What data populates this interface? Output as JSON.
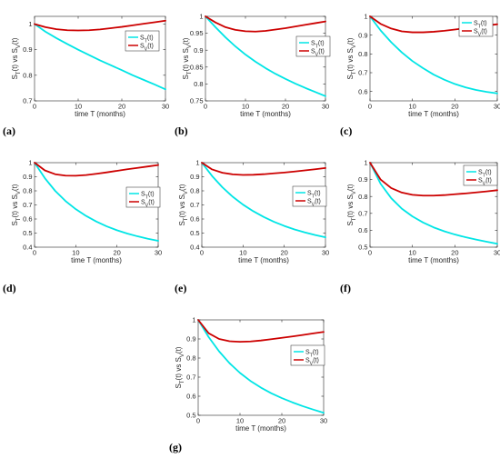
{
  "colors": {
    "S_T": "#00e5e5",
    "S_V": "#cc0000"
  },
  "chart_data": [
    {
      "type": "line",
      "panel_label": "(a)",
      "xlabel": "time T (months)",
      "ylabel": "S_T(t) vs S_V(t)",
      "xlim": [
        0,
        30
      ],
      "ylim": [
        0.7,
        1.03
      ],
      "xticks": [
        "0",
        "10",
        "20",
        "30"
      ],
      "yticks": [
        "0.7",
        "0.8",
        "0.9",
        "1"
      ],
      "legend_position": "top-right",
      "x": [
        0,
        2.5,
        5,
        7.5,
        10,
        12.5,
        15,
        17.5,
        20,
        22.5,
        25,
        27.5,
        30
      ],
      "series": [
        {
          "name": "S_T(t)",
          "values": [
            1,
            0.97,
            0.945,
            0.922,
            0.9,
            0.879,
            0.858,
            0.839,
            0.82,
            0.8,
            0.782,
            0.764,
            0.745
          ]
        },
        {
          "name": "S_V(t)",
          "values": [
            1,
            0.988,
            0.98,
            0.976,
            0.975,
            0.976,
            0.979,
            0.984,
            0.989,
            0.995,
            1.001,
            1.007,
            1.013
          ]
        }
      ]
    },
    {
      "type": "line",
      "panel_label": "(b)",
      "xlabel": "time T (months)",
      "ylabel": "S_T(t) vs S_V(t)",
      "xlim": [
        0,
        30
      ],
      "ylim": [
        0.75,
        1.0
      ],
      "xticks": [
        "0",
        "10",
        "20",
        "30"
      ],
      "yticks": [
        "0.75",
        "0.8",
        "0.85",
        "0.9",
        "0.95",
        "1"
      ],
      "legend_position": "right",
      "x": [
        0,
        2.5,
        5,
        7.5,
        10,
        12.5,
        15,
        17.5,
        20,
        22.5,
        25,
        27.5,
        30
      ],
      "series": [
        {
          "name": "S_T(t)",
          "values": [
            1,
            0.968,
            0.938,
            0.911,
            0.887,
            0.866,
            0.847,
            0.83,
            0.815,
            0.801,
            0.788,
            0.776,
            0.764
          ]
        },
        {
          "name": "S_V(t)",
          "values": [
            1,
            0.982,
            0.968,
            0.96,
            0.956,
            0.955,
            0.957,
            0.961,
            0.965,
            0.97,
            0.975,
            0.98,
            0.985
          ]
        }
      ]
    },
    {
      "type": "line",
      "panel_label": "(c)",
      "xlabel": "time T (months)",
      "ylabel": "S_T(t) vs S_V(t)",
      "xlim": [
        0,
        30
      ],
      "ylim": [
        0.55,
        1.0
      ],
      "xticks": [
        "0",
        "10",
        "20",
        "30"
      ],
      "yticks": [
        "0.6",
        "0.7",
        "0.8",
        "0.9",
        "1"
      ],
      "legend_position": "top-right",
      "x": [
        0,
        2.5,
        5,
        7.5,
        10,
        12.5,
        15,
        17.5,
        20,
        22.5,
        25,
        27.5,
        30
      ],
      "series": [
        {
          "name": "S_T(t)",
          "values": [
            1,
            0.925,
            0.862,
            0.808,
            0.762,
            0.724,
            0.69,
            0.663,
            0.64,
            0.622,
            0.608,
            0.598,
            0.59
          ]
        },
        {
          "name": "S_V(t)",
          "values": [
            1,
            0.96,
            0.935,
            0.92,
            0.915,
            0.915,
            0.918,
            0.923,
            0.93,
            0.937,
            0.944,
            0.951,
            0.958
          ]
        }
      ]
    },
    {
      "type": "line",
      "panel_label": "(d)",
      "xlabel": "time T (months)",
      "ylabel": "S_T(t) vs S_V(t)",
      "xlim": [
        0,
        30
      ],
      "ylim": [
        0.4,
        1.0
      ],
      "xticks": [
        "0",
        "10",
        "20",
        "30"
      ],
      "yticks": [
        "0.4",
        "0.5",
        "0.6",
        "0.7",
        "0.8",
        "0.9",
        "1"
      ],
      "legend_position": "right",
      "x": [
        0,
        2.5,
        5,
        7.5,
        10,
        12.5,
        15,
        17.5,
        20,
        22.5,
        25,
        27.5,
        30
      ],
      "series": [
        {
          "name": "S_T(t)",
          "values": [
            1,
            0.89,
            0.8,
            0.728,
            0.67,
            0.622,
            0.582,
            0.548,
            0.52,
            0.497,
            0.477,
            0.46,
            0.445
          ]
        },
        {
          "name": "S_V(t)",
          "values": [
            1,
            0.945,
            0.918,
            0.908,
            0.907,
            0.912,
            0.921,
            0.931,
            0.942,
            0.953,
            0.963,
            0.973,
            0.983
          ]
        }
      ]
    },
    {
      "type": "line",
      "panel_label": "(e)",
      "xlabel": "time T (months)",
      "ylabel": "S_T(t) vs S_V(t)",
      "xlim": [
        0,
        30
      ],
      "ylim": [
        0.4,
        1.0
      ],
      "xticks": [
        "0",
        "10",
        "20",
        "30"
      ],
      "yticks": [
        "0.4",
        "0.5",
        "0.6",
        "0.7",
        "0.8",
        "0.9",
        "1"
      ],
      "legend_position": "right",
      "x": [
        0,
        2.5,
        5,
        7.5,
        10,
        12.5,
        15,
        17.5,
        20,
        22.5,
        25,
        27.5,
        30
      ],
      "series": [
        {
          "name": "S_T(t)",
          "values": [
            1,
            0.905,
            0.825,
            0.758,
            0.702,
            0.655,
            0.615,
            0.58,
            0.551,
            0.526,
            0.505,
            0.486,
            0.47
          ]
        },
        {
          "name": "S_V(t)",
          "values": [
            1,
            0.952,
            0.928,
            0.917,
            0.913,
            0.914,
            0.918,
            0.924,
            0.93,
            0.937,
            0.945,
            0.953,
            0.962
          ]
        }
      ]
    },
    {
      "type": "line",
      "panel_label": "(f)",
      "xlabel": "time T (months)",
      "ylabel": "S_T(t) vs S_V(t)",
      "xlim": [
        0,
        30
      ],
      "ylim": [
        0.5,
        1.0
      ],
      "xticks": [
        "0",
        "10",
        "20",
        "30"
      ],
      "yticks": [
        "0.5",
        "0.6",
        "0.7",
        "0.8",
        "0.9",
        "1"
      ],
      "legend_position": "top-right",
      "x": [
        0,
        2.5,
        5,
        7.5,
        10,
        12.5,
        15,
        17.5,
        20,
        22.5,
        25,
        27.5,
        30
      ],
      "series": [
        {
          "name": "S_T(t)",
          "values": [
            1,
            0.875,
            0.79,
            0.728,
            0.682,
            0.646,
            0.617,
            0.594,
            0.575,
            0.559,
            0.545,
            0.532,
            0.52
          ]
        },
        {
          "name": "S_V(t)",
          "values": [
            1,
            0.9,
            0.85,
            0.823,
            0.81,
            0.805,
            0.805,
            0.808,
            0.813,
            0.818,
            0.824,
            0.83,
            0.837
          ]
        }
      ]
    },
    {
      "type": "line",
      "panel_label": "(g)",
      "xlabel": "time T (months)",
      "ylabel": "S_T(t) vs S_V(t)",
      "xlim": [
        0,
        30
      ],
      "ylim": [
        0.5,
        1.0
      ],
      "xticks": [
        "0",
        "10",
        "20",
        "30"
      ],
      "yticks": [
        "0.5",
        "0.6",
        "0.7",
        "0.8",
        "0.9",
        "1"
      ],
      "legend_position": "right",
      "x": [
        0,
        2.5,
        5,
        7.5,
        10,
        12.5,
        15,
        17.5,
        20,
        22.5,
        25,
        27.5,
        30
      ],
      "series": [
        {
          "name": "S_T(t)",
          "values": [
            1,
            0.91,
            0.835,
            0.773,
            0.722,
            0.68,
            0.645,
            0.615,
            0.59,
            0.568,
            0.548,
            0.53,
            0.513
          ]
        },
        {
          "name": "S_V(t)",
          "values": [
            1,
            0.93,
            0.9,
            0.888,
            0.885,
            0.887,
            0.892,
            0.899,
            0.906,
            0.913,
            0.921,
            0.929,
            0.937
          ]
        }
      ]
    }
  ]
}
